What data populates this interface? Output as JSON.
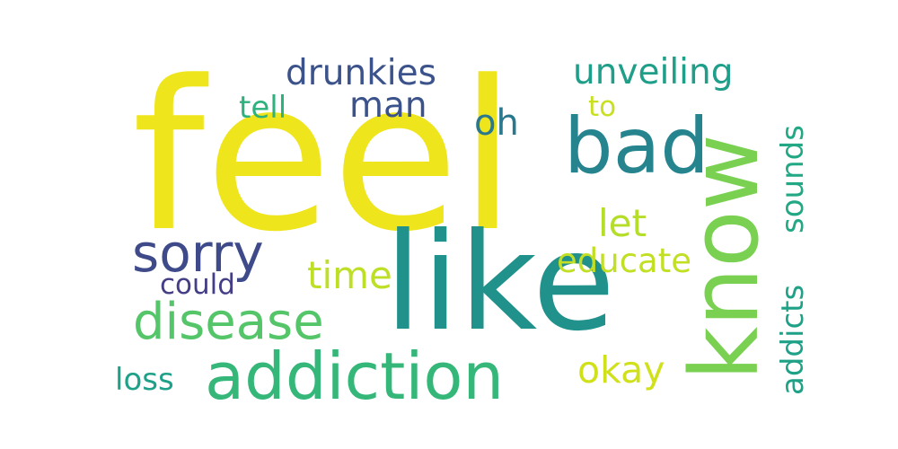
{
  "words": [
    {
      "id": "feel",
      "text": "feel",
      "color": "#efe51c"
    },
    {
      "id": "like",
      "text": "like",
      "color": "#21918c"
    },
    {
      "id": "know",
      "text": "know",
      "color": "#7ad151"
    },
    {
      "id": "bad",
      "text": "bad",
      "color": "#25848e"
    },
    {
      "id": "addiction",
      "text": "addiction",
      "color": "#35b779"
    },
    {
      "id": "disease",
      "text": "disease",
      "color": "#54c568"
    },
    {
      "id": "sorry",
      "text": "sorry",
      "color": "#3e4a89"
    },
    {
      "id": "drunkies",
      "text": "drunkies",
      "color": "#3b528b"
    },
    {
      "id": "unveiling",
      "text": "unveiling",
      "color": "#1f9e89"
    },
    {
      "id": "man",
      "text": "man",
      "color": "#3b528b"
    },
    {
      "id": "tell",
      "text": "tell",
      "color": "#2db27d"
    },
    {
      "id": "oh",
      "text": "oh",
      "color": "#2a788e"
    },
    {
      "id": "to",
      "text": "to",
      "color": "#c8e020"
    },
    {
      "id": "sounds",
      "text": "sounds",
      "color": "#22a884"
    },
    {
      "id": "addicts",
      "text": "addicts",
      "color": "#1fa187"
    },
    {
      "id": "let",
      "text": "let",
      "color": "#b5de2b"
    },
    {
      "id": "educate",
      "text": "educate",
      "color": "#c2df23"
    },
    {
      "id": "time",
      "text": "time",
      "color": "#bddf26"
    },
    {
      "id": "could",
      "text": "could",
      "color": "#433e85"
    },
    {
      "id": "okay",
      "text": "okay",
      "color": "#d0e11c"
    },
    {
      "id": "loss",
      "text": "loss",
      "color": "#1fa088"
    }
  ]
}
